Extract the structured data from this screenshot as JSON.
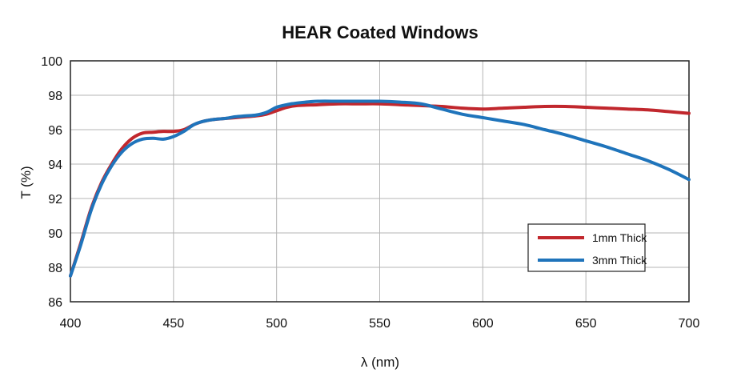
{
  "chart_data": {
    "type": "line",
    "title": "HEAR Coated Windows",
    "xlabel": "λ (nm)",
    "ylabel": "T (%)",
    "xlim": [
      400,
      700
    ],
    "ylim": [
      86,
      100
    ],
    "xticks": [
      "400",
      "450",
      "500",
      "550",
      "600",
      "650",
      "700"
    ],
    "yticks": [
      "86",
      "88",
      "90",
      "92",
      "94",
      "96",
      "98",
      "100"
    ],
    "grid": true,
    "legend_position": "bottom-right",
    "series": [
      {
        "name": "1mm Thick",
        "color": "#c1272d",
        "x": [
          400,
          405,
          410,
          415,
          420,
          425,
          430,
          435,
          440,
          445,
          450,
          455,
          460,
          465,
          470,
          475,
          480,
          485,
          490,
          495,
          500,
          505,
          510,
          520,
          530,
          540,
          550,
          560,
          570,
          580,
          590,
          600,
          610,
          620,
          630,
          640,
          650,
          660,
          670,
          680,
          690,
          700
        ],
        "y": [
          87.5,
          89.4,
          91.4,
          92.9,
          94.0,
          94.9,
          95.5,
          95.8,
          95.85,
          95.9,
          95.9,
          96.0,
          96.3,
          96.5,
          96.6,
          96.65,
          96.7,
          96.75,
          96.8,
          96.9,
          97.1,
          97.3,
          97.4,
          97.45,
          97.5,
          97.5,
          97.5,
          97.45,
          97.4,
          97.35,
          97.25,
          97.2,
          97.25,
          97.3,
          97.35,
          97.35,
          97.3,
          97.25,
          97.2,
          97.15,
          97.05,
          96.95
        ]
      },
      {
        "name": "3mm Thick",
        "color": "#1f74bb",
        "x": [
          400,
          405,
          410,
          415,
          420,
          425,
          430,
          435,
          440,
          445,
          450,
          455,
          460,
          465,
          470,
          475,
          480,
          485,
          490,
          495,
          500,
          505,
          510,
          520,
          530,
          540,
          550,
          560,
          570,
          580,
          590,
          600,
          610,
          620,
          630,
          640,
          650,
          660,
          670,
          680,
          690,
          700
        ],
        "y": [
          87.5,
          89.3,
          91.3,
          92.8,
          93.9,
          94.7,
          95.2,
          95.45,
          95.5,
          95.45,
          95.6,
          95.9,
          96.3,
          96.5,
          96.6,
          96.65,
          96.75,
          96.8,
          96.85,
          97.0,
          97.3,
          97.45,
          97.55,
          97.65,
          97.65,
          97.65,
          97.65,
          97.6,
          97.5,
          97.2,
          96.9,
          96.7,
          96.5,
          96.3,
          96.0,
          95.7,
          95.35,
          95.0,
          94.6,
          94.2,
          93.7,
          93.1
        ]
      }
    ]
  }
}
